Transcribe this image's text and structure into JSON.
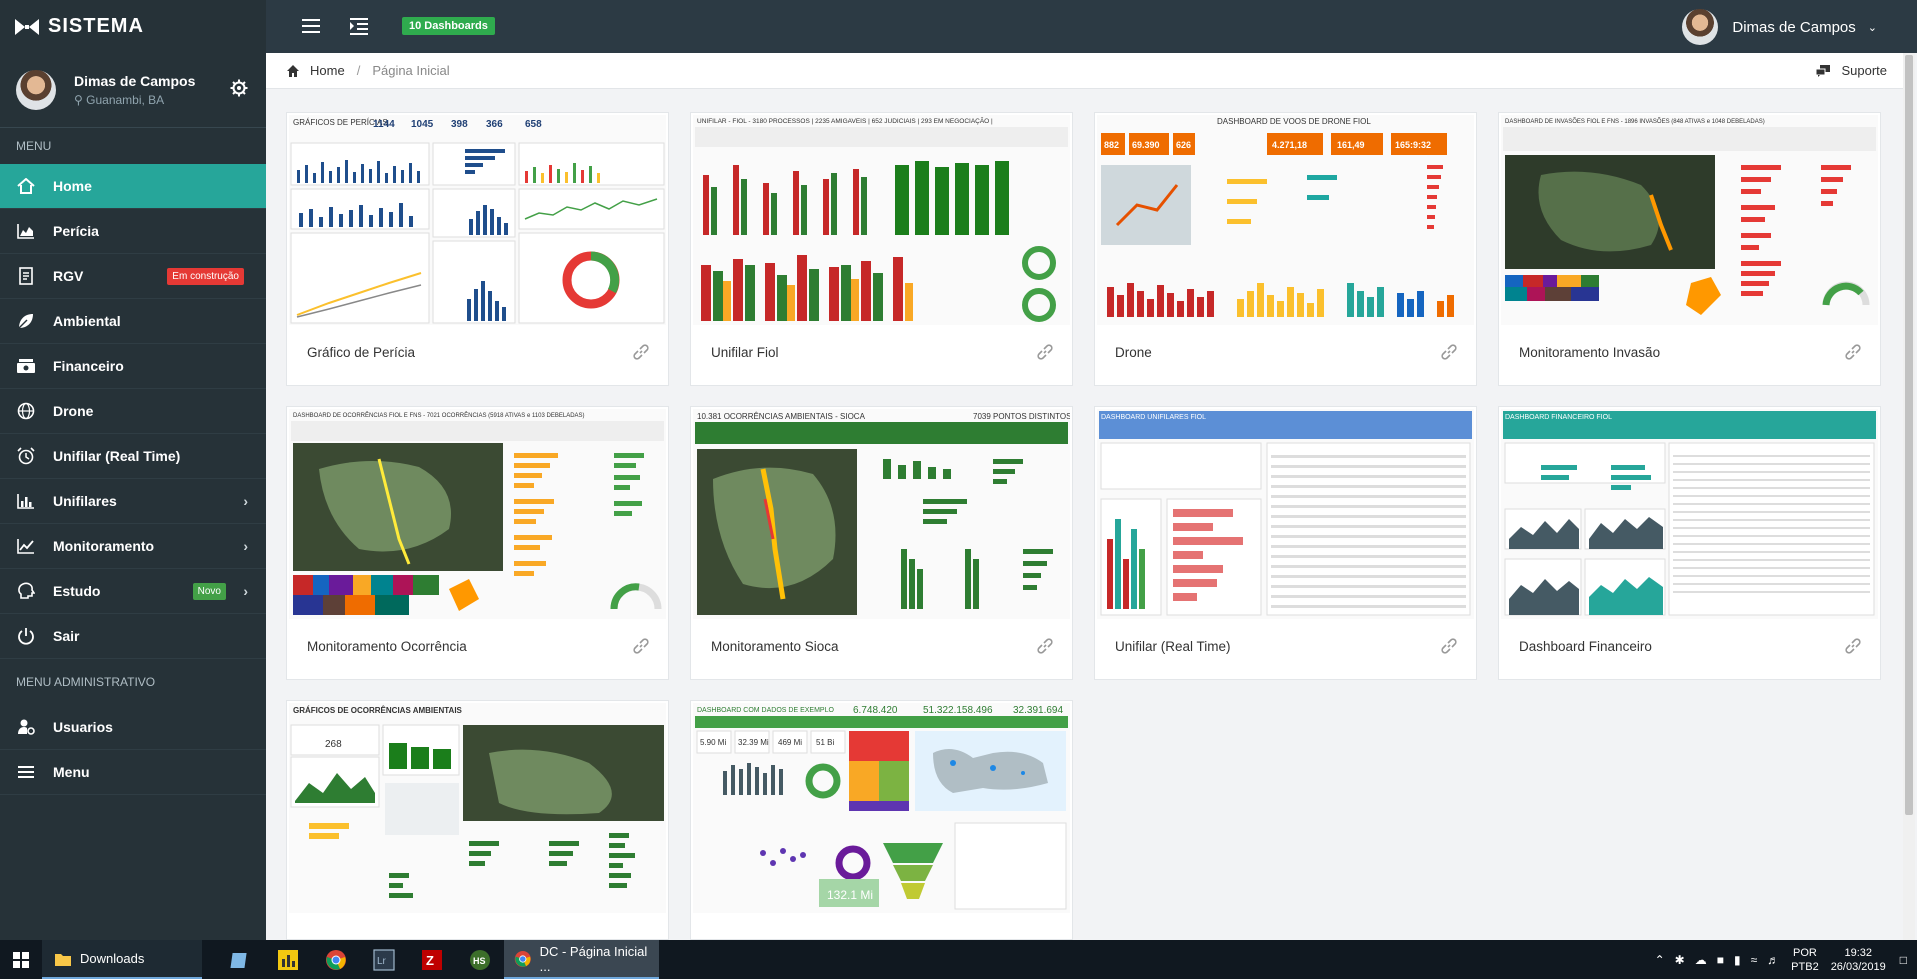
{
  "brand": {
    "name": "SISTEMA"
  },
  "topbar": {
    "dashboards_badge": "10 Dashboards",
    "user_name": "Dimas de Campos"
  },
  "profile": {
    "name": "Dimas de Campos",
    "location": "Guanambi, BA"
  },
  "menu": {
    "title": "MENU",
    "items": [
      {
        "label": "Home",
        "icon": "home-icon"
      },
      {
        "label": "Perícia",
        "icon": "chart-area-icon"
      },
      {
        "label": "RGV",
        "icon": "document-icon",
        "tag": "Em construção"
      },
      {
        "label": "Ambiental",
        "icon": "leaf-icon"
      },
      {
        "label": "Financeiro",
        "icon": "money-icon"
      },
      {
        "label": "Drone",
        "icon": "globe-icon"
      },
      {
        "label": "Unifilar (Real Time)",
        "icon": "alarm-clock-icon"
      },
      {
        "label": "Unifilares",
        "icon": "bar-chart-icon"
      },
      {
        "label": "Monitoramento",
        "icon": "line-chart-icon"
      },
      {
        "label": "Estudo",
        "icon": "brain-icon",
        "tag": "Novo"
      },
      {
        "label": "Sair",
        "icon": "power-icon"
      }
    ],
    "admin_title": "MENU ADMINISTRATIVO",
    "admin_items": [
      {
        "label": "Usuarios",
        "icon": "user-gear-icon"
      },
      {
        "label": "Menu",
        "icon": "hamburger-icon"
      }
    ]
  },
  "breadcrumb": {
    "home": "Home",
    "separator": "/",
    "current": "Página Inicial"
  },
  "support": {
    "label": "Suporte"
  },
  "cards": [
    {
      "title": "Gráfico de Perícia"
    },
    {
      "title": "Unifilar Fiol"
    },
    {
      "title": "Drone"
    },
    {
      "title": "Monitoramento Invasão"
    },
    {
      "title": "Monitoramento Ocorrência"
    },
    {
      "title": "Monitoramento Sioca"
    },
    {
      "title": "Unifilar (Real Time)"
    },
    {
      "title": "Dashboard Financeiro"
    },
    {
      "title": ""
    },
    {
      "title": ""
    }
  ],
  "thumb_text": {
    "pericia_head": "GRÁFICOS DE PERÍCIAS",
    "pericia_nums": [
      "1144",
      "1045",
      "398",
      "366",
      "658"
    ],
    "fiol_head": "UNIFILAR - FIOL - 3180 PROCESSOS | 2235 AMIGAVEIS | 652 JUDICIAIS | 293 EM NEGOCIAÇÃO |",
    "drone_head": "DASHBOARD DE VOOS DE DRONE FIOL",
    "drone_nums": [
      "882",
      "69.390",
      "626",
      "4.271,18",
      "161,49",
      "165:9:32"
    ],
    "invasao_head": "DASHBOARD DE INVASÕES FIOL E FNS - 1896 INVASÕES (848 ATIVAS e 1048 DEBELADAS)",
    "ocorrencia_head": "DASHBOARD DE OCORRÊNCIAS FIOL E FNS - 7021 OCORRÊNCIAS (5918 ATIVAS e 1103 DEBELADAS)",
    "sioca_head": "10.381 OCORRÊNCIAS AMBIENTAIS - SIOCA",
    "sioca_points": "7039  PONTOS DISTINTOS",
    "realtime_head": "DASHBOARD UNIFILARES FIOL",
    "financeiro_head": "DASHBOARD FINANCEIRO FIOL",
    "ambiental_head": "GRÁFICOS DE OCORRÊNCIAS AMBIENTAIS",
    "ambiental_num": "268",
    "exemplo_head": "DASHBOARD COM DADOS DE EXEMPLO",
    "exemplo_nums": [
      "6.748.420",
      "51.322.158.496",
      "32.391.694"
    ],
    "exemplo_kpis": [
      "5.90 Mi",
      "32.39 Mi",
      "469 Mi",
      "51 Bi"
    ],
    "exemplo_big": "132.1 Mi"
  },
  "taskbar": {
    "downloads": "Downloads",
    "active_window": "DC - Página Inicial ...",
    "lang_top": "POR",
    "lang_bottom": "PTB2",
    "time": "19:32",
    "date": "26/03/2019"
  },
  "colors": {
    "sidebar": "#263238",
    "accent": "#26a69a",
    "topbar": "#2c3a44",
    "badge_green": "#2fab4e",
    "tag_red": "#e53935"
  }
}
